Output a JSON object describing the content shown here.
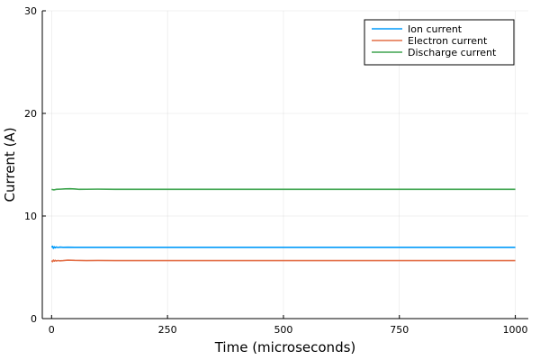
{
  "chart_data": {
    "type": "line",
    "xlabel": "Time (microseconds)",
    "ylabel": "Current (A)",
    "xlim": [
      -20,
      1028
    ],
    "ylim": [
      0,
      30
    ],
    "xticks": [
      0,
      250,
      500,
      750,
      1000
    ],
    "yticks": [
      0,
      10,
      20,
      30
    ],
    "grid": true,
    "legend_position": "top-right",
    "series": [
      {
        "name": "Ion current",
        "color": "#009AFA",
        "x": [
          0,
          2,
          4,
          6,
          8,
          10,
          14,
          18,
          25,
          35,
          50,
          75,
          100,
          200,
          300,
          400,
          500,
          600,
          700,
          800,
          900,
          1000
        ],
        "y": [
          6.95,
          7.05,
          6.85,
          7.0,
          6.9,
          6.98,
          6.93,
          6.97,
          6.95,
          6.96,
          6.95,
          6.95,
          6.95,
          6.95,
          6.95,
          6.95,
          6.95,
          6.95,
          6.95,
          6.95,
          6.95,
          6.95
        ]
      },
      {
        "name": "Electron current",
        "color": "#E36F47",
        "x": [
          0,
          2,
          4,
          6,
          8,
          10,
          14,
          18,
          25,
          35,
          50,
          75,
          100,
          200,
          300,
          400,
          500,
          600,
          700,
          800,
          900,
          1000
        ],
        "y": [
          5.65,
          5.55,
          5.7,
          5.6,
          5.68,
          5.62,
          5.66,
          5.63,
          5.65,
          5.7,
          5.67,
          5.65,
          5.66,
          5.65,
          5.65,
          5.65,
          5.65,
          5.65,
          5.65,
          5.65,
          5.65,
          5.65
        ]
      },
      {
        "name": "Discharge current",
        "color": "#3EA44E",
        "x": [
          0,
          5,
          10,
          20,
          30,
          40,
          50,
          60,
          75,
          100,
          150,
          200,
          300,
          400,
          500,
          600,
          700,
          800,
          900,
          1000
        ],
        "y": [
          12.6,
          12.55,
          12.6,
          12.62,
          12.65,
          12.66,
          12.64,
          12.6,
          12.61,
          12.62,
          12.6,
          12.6,
          12.6,
          12.6,
          12.6,
          12.6,
          12.6,
          12.6,
          12.6,
          12.6
        ]
      }
    ]
  }
}
